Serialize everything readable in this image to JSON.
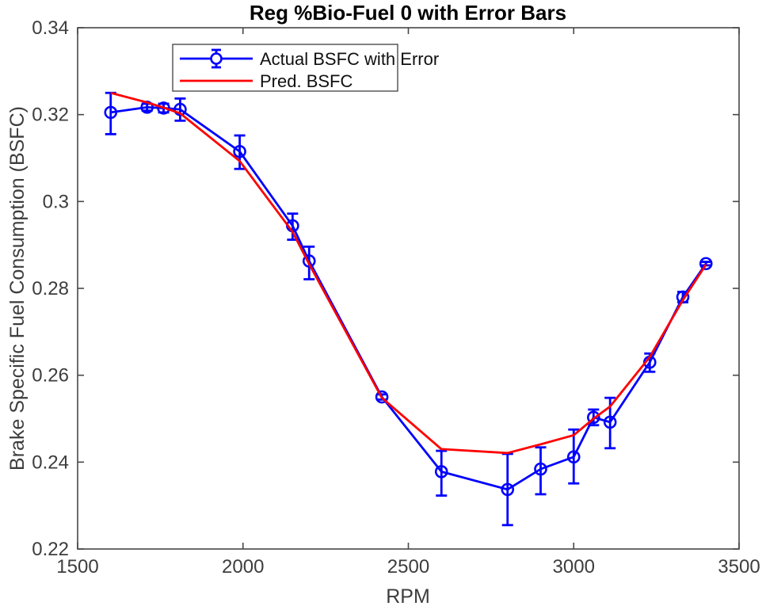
{
  "chart_data": {
    "type": "line",
    "title": "Reg %Bio-Fuel 0 with Error Bars",
    "xlabel": "RPM",
    "ylabel": "Brake Specific Fuel Consumption (BSFC)",
    "xlim": [
      1500,
      3500
    ],
    "ylim": [
      0.22,
      0.34
    ],
    "xticks": [
      1500,
      2000,
      2500,
      3000,
      3500
    ],
    "xtick_labels": [
      "1500",
      "2000",
      "2500",
      "3000",
      "3500"
    ],
    "yticks": [
      0.22,
      0.24,
      0.26,
      0.28,
      0.3,
      0.32,
      0.34
    ],
    "ytick_labels": [
      "0.22",
      "0.24",
      "0.26",
      "0.28",
      "0.3",
      "0.32",
      "0.34"
    ],
    "grid": false,
    "legend_position": "top-left-inside",
    "x": [
      1600,
      1710,
      1760,
      1810,
      1990,
      2150,
      2200,
      2420,
      2600,
      2800,
      2900,
      3000,
      3060,
      3110,
      3230,
      3330,
      3400
    ],
    "series": [
      {
        "name": "Actual BSFC with Error",
        "style": "line-markers-errorbars",
        "color": "#0000ff",
        "values": [
          0.3205,
          0.3217,
          0.3215,
          0.3212,
          0.3115,
          0.2944,
          0.2863,
          0.255,
          0.2378,
          0.2337,
          0.2384,
          0.2412,
          0.2503,
          0.2492,
          0.263,
          0.278,
          0.2857
        ],
        "error_plus": [
          0.0045,
          0.0008,
          0.001,
          0.0025,
          0.0037,
          0.0028,
          0.0033,
          0.0006,
          0.0048,
          0.0082,
          0.005,
          0.0063,
          0.0018,
          0.0056,
          0.002,
          0.0012,
          0.0004
        ],
        "error_minus": [
          0.005,
          0.0008,
          0.001,
          0.0026,
          0.004,
          0.0032,
          0.0042,
          0.0006,
          0.0055,
          0.0082,
          0.0058,
          0.0061,
          0.0018,
          0.006,
          0.0022,
          0.0012,
          0.0004
        ]
      },
      {
        "name": "Pred. BSFC",
        "style": "line",
        "color": "#ff0000",
        "values": [
          0.325,
          0.3228,
          0.3216,
          0.3203,
          0.3093,
          0.293,
          0.2856,
          0.2548,
          0.243,
          0.2421,
          0.2441,
          0.2462,
          0.25,
          0.2528,
          0.2642,
          0.2773,
          0.2855
        ]
      }
    ],
    "axis_color": "#474747",
    "background_color": "#ffffff"
  }
}
